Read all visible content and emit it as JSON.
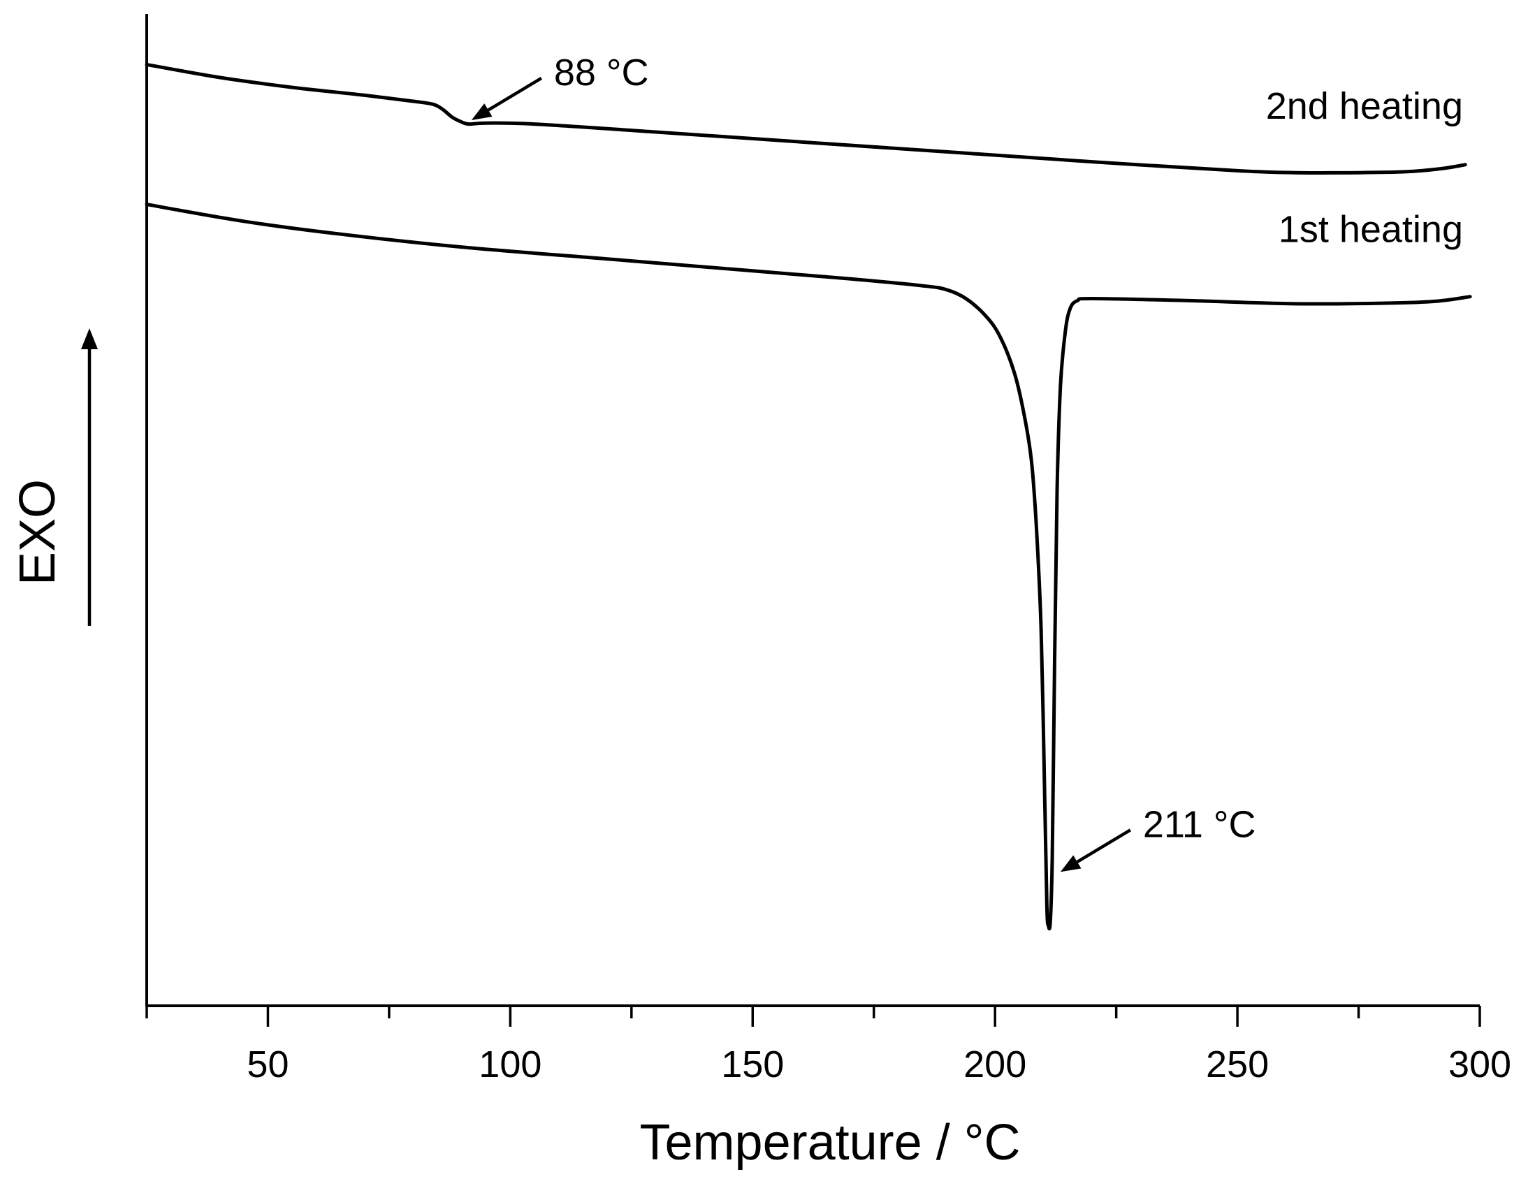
{
  "chart_data": {
    "type": "line",
    "title": "",
    "xlabel": "Temperature / °C",
    "ylabel": "EXO",
    "xlim": [
      25,
      300
    ],
    "ylim": [
      0,
      100
    ],
    "xticks": [
      50,
      100,
      150,
      200,
      250,
      300
    ],
    "x_minor_step": 25,
    "grid": false,
    "legend": "none",
    "line_color": "#000000",
    "series": [
      {
        "name": "2nd heating",
        "points": [
          [
            25,
            94.9
          ],
          [
            40,
            93.6
          ],
          [
            55,
            92.6
          ],
          [
            70,
            91.8
          ],
          [
            80,
            91.2
          ],
          [
            84,
            90.9
          ],
          [
            86,
            90.4
          ],
          [
            88,
            89.6
          ],
          [
            90,
            89.1
          ],
          [
            91.5,
            88.9
          ],
          [
            95,
            89.0
          ],
          [
            105,
            88.9
          ],
          [
            130,
            88.1
          ],
          [
            160,
            87.1
          ],
          [
            190,
            86.1
          ],
          [
            220,
            85.1
          ],
          [
            250,
            84.2
          ],
          [
            262,
            84.0
          ],
          [
            275,
            84.0
          ],
          [
            285,
            84.1
          ],
          [
            292,
            84.4
          ],
          [
            297,
            84.8
          ]
        ]
      },
      {
        "name": "1st heating",
        "points": [
          [
            25,
            80.8
          ],
          [
            45,
            79.1
          ],
          [
            65,
            77.8
          ],
          [
            90,
            76.5
          ],
          [
            120,
            75.3
          ],
          [
            150,
            74.1
          ],
          [
            170,
            73.3
          ],
          [
            185,
            72.6
          ],
          [
            190,
            72.2
          ],
          [
            194,
            71.3
          ],
          [
            198,
            69.6
          ],
          [
            201,
            67.5
          ],
          [
            204,
            63.8
          ],
          [
            206,
            59.6
          ],
          [
            207.5,
            55.0
          ],
          [
            208.5,
            48.5
          ],
          [
            209.5,
            38.0
          ],
          [
            210.2,
            22.0
          ],
          [
            210.7,
            10.0
          ],
          [
            211,
            8.1
          ],
          [
            211.4,
            8.5
          ],
          [
            211.8,
            15.0
          ],
          [
            212.3,
            35.0
          ],
          [
            212.8,
            52.0
          ],
          [
            213.5,
            62.5
          ],
          [
            214.5,
            68.0
          ],
          [
            215.5,
            70.3
          ],
          [
            217,
            71.1
          ],
          [
            220,
            71.3
          ],
          [
            240,
            71.1
          ],
          [
            260,
            70.8
          ],
          [
            275,
            70.8
          ],
          [
            290,
            71.0
          ],
          [
            298,
            71.5
          ]
        ]
      }
    ],
    "annotations": [
      {
        "text": "88 °C",
        "points_to": [
          92,
          89.3
        ]
      },
      {
        "text": "211 °C",
        "points_to": [
          213.5,
          13.5
        ]
      }
    ]
  }
}
